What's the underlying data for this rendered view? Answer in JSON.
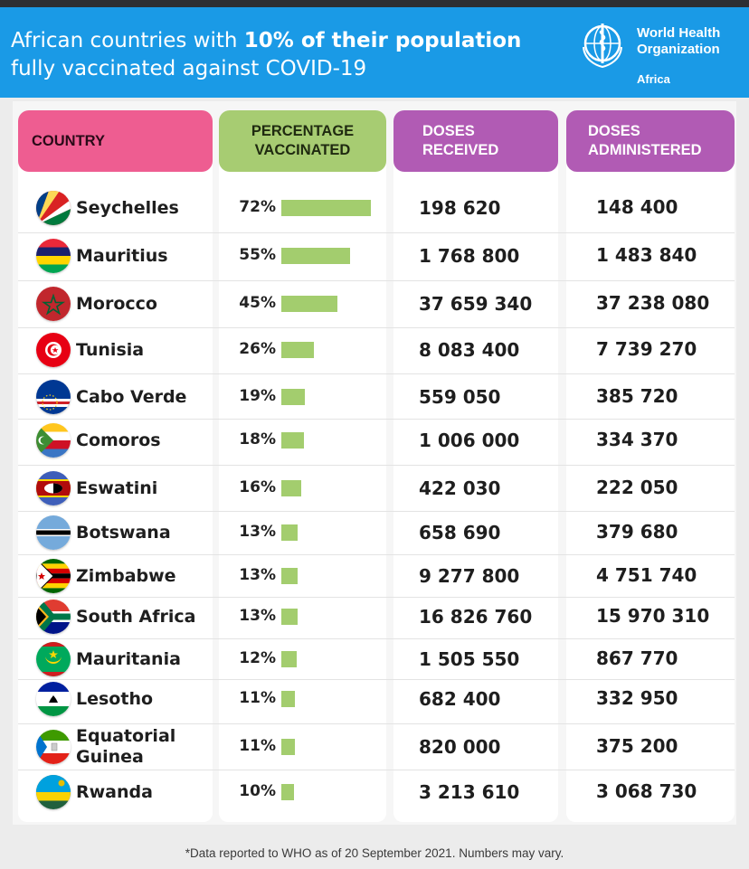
{
  "header": {
    "title_part1": "African countries with ",
    "title_bold": "10% of their population",
    "title_line2": "fully vaccinated against COVID-19",
    "org_line1": "World Health",
    "org_line2": "Organization",
    "org_region": "Africa"
  },
  "chart_data": {
    "type": "table",
    "columns": [
      "COUNTRY",
      "PERCENTAGE VACCINATED",
      "DOSES RECEIVED",
      "DOSES ADMINISTERED"
    ],
    "column_header_lines": {
      "country": [
        "COUNTRY"
      ],
      "pct": [
        "PERCENTAGE",
        "VACCINATED"
      ],
      "received": [
        "DOSES",
        "RECEIVED"
      ],
      "administered": [
        "DOSES",
        "ADMINISTERED"
      ]
    },
    "rows": [
      {
        "country": "Seychelles",
        "pct": 72,
        "pct_label": "72%",
        "received": "198 620",
        "administered": "148 400"
      },
      {
        "country": "Mauritius",
        "pct": 55,
        "pct_label": "55%",
        "received": "1 768 800",
        "administered": "1 483 840"
      },
      {
        "country": "Morocco",
        "pct": 45,
        "pct_label": "45%",
        "received": "37 659 340",
        "administered": "37 238 080"
      },
      {
        "country": "Tunisia",
        "pct": 26,
        "pct_label": "26%",
        "received": "8 083 400",
        "administered": "7 739 270"
      },
      {
        "country": "Cabo Verde",
        "pct": 19,
        "pct_label": "19%",
        "received": "559 050",
        "administered": "385 720"
      },
      {
        "country": "Comoros",
        "pct": 18,
        "pct_label": "18%",
        "received": "1 006 000",
        "administered": "334 370"
      },
      {
        "country": "Eswatini",
        "pct": 16,
        "pct_label": "16%",
        "received": "422 030",
        "administered": "222 050"
      },
      {
        "country": "Botswana",
        "pct": 13,
        "pct_label": "13%",
        "received": "658 690",
        "administered": "379 680"
      },
      {
        "country": "Zimbabwe",
        "pct": 13,
        "pct_label": "13%",
        "received": "9 277 800",
        "administered": "4 751 740"
      },
      {
        "country": "South Africa",
        "pct": 13,
        "pct_label": "13%",
        "received": "16 826 760",
        "administered": "15 970 310"
      },
      {
        "country": "Mauritania",
        "pct": 12,
        "pct_label": "12%",
        "received": "1 505 550",
        "administered": "867 770"
      },
      {
        "country": "Lesotho",
        "pct": 11,
        "pct_label": "11%",
        "received": "682 400",
        "administered": "332 950"
      },
      {
        "country": "Equatorial Guinea",
        "country_lines": [
          "Equatorial",
          "Guinea"
        ],
        "pct": 11,
        "pct_label": "11%",
        "received": "820 000",
        "administered": "375 200"
      },
      {
        "country": "Rwanda",
        "pct": 10,
        "pct_label": "10%",
        "received": "3 213 610",
        "administered": "3 068 730"
      }
    ],
    "bar_color": "#a3cd6e"
  },
  "footnote": "*Data reported to WHO as of 20 September 2021. Numbers may vary.",
  "colors": {
    "header_bg": "#1a9ae6",
    "country_header": "#ee5d91",
    "pct_header": "#a7cc72",
    "doses_header": "#b15bb4"
  }
}
